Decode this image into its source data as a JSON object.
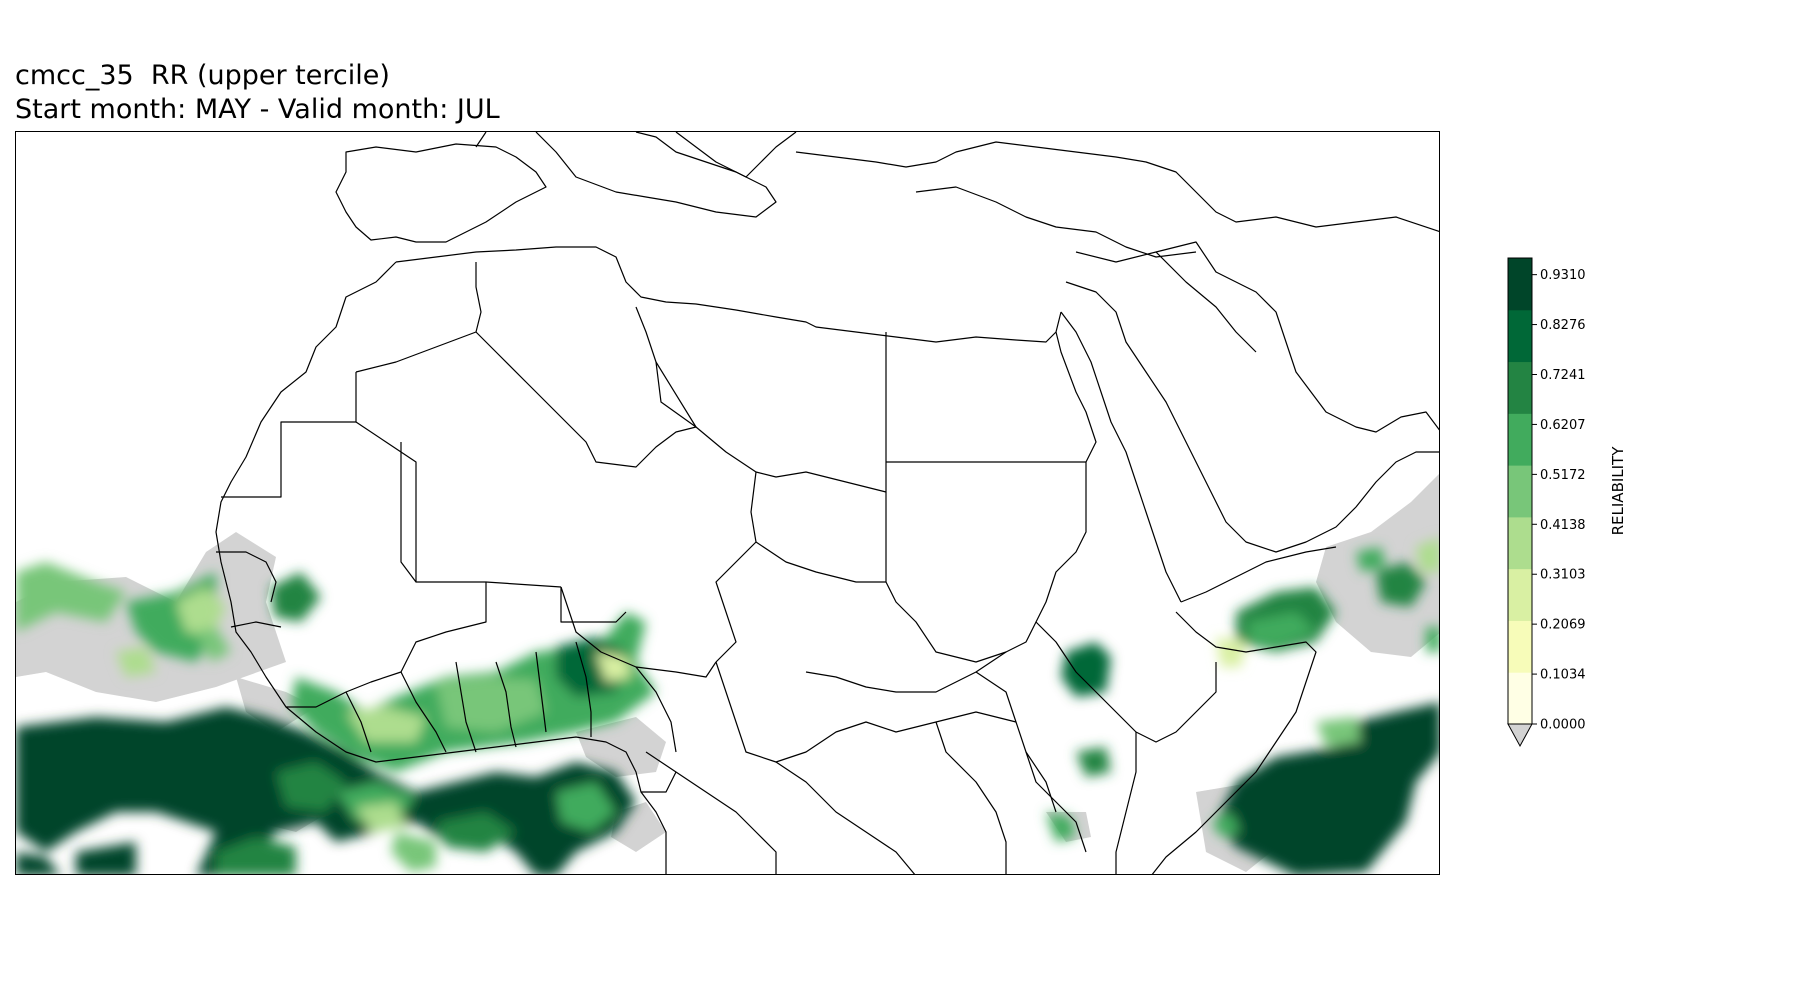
{
  "title": {
    "line1": "cmcc_35  RR (upper tercile)",
    "line2": "Start month: MAY - Valid month: JUL"
  },
  "colorbar": {
    "label": "RELIABILITY",
    "ticks": [
      "0.9310",
      "0.8276",
      "0.7241",
      "0.6207",
      "0.5172",
      "0.4138",
      "0.3103",
      "0.2069",
      "0.1034",
      "0.0000"
    ],
    "under_color": "#d3d3d3",
    "colors": [
      "#ffffe5",
      "#f7fcb9",
      "#d9f0a3",
      "#addd8e",
      "#78c679",
      "#41ab5d",
      "#238443",
      "#006837",
      "#004529"
    ],
    "extend": "min"
  },
  "map": {
    "region": "North Africa and Middle East",
    "no_data_color": "#d3d3d3"
  }
}
